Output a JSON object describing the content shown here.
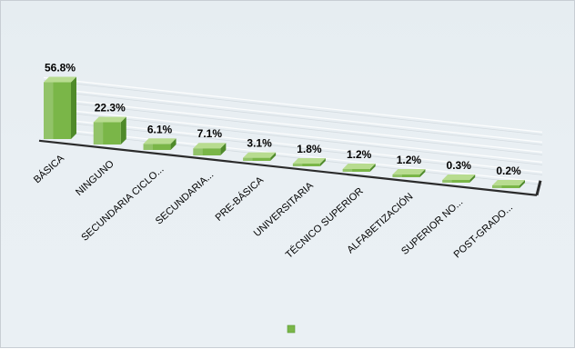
{
  "chart_data": {
    "type": "bar",
    "categories": [
      "BÁSICA",
      "NINGUNO",
      "SECUNDARIA CICLO...",
      "SECUNDARIA...",
      "PRE-BÁSICA",
      "UNIVERSITARIA",
      "TÉCNICO SUPERIOR",
      "ALFABETIZACIÓN",
      "SUPERIOR NO...",
      "POST-GRADO..."
    ],
    "values": [
      56.8,
      22.3,
      6.1,
      7.1,
      3.1,
      1.8,
      1.2,
      1.2,
      0.3,
      0.2
    ],
    "data_labels": [
      "56.8%",
      "22.3%",
      "6.1%",
      "7.1%",
      "3.1%",
      "1.8%",
      "1.2%",
      "1.2%",
      "0.3%",
      "0.2%"
    ],
    "title": "",
    "xlabel": "",
    "ylabel": "",
    "ylim": [
      0,
      60
    ],
    "grid": true,
    "perspective": "3d",
    "legend": "bottom-center",
    "colors": {
      "bar_front": "#7ab648",
      "bar_side": "#4f8a2a",
      "bar_top": "#b8dc90",
      "gridline": "#ffffff",
      "floor_edge": "#2b2b2b",
      "background": "#e8eef2"
    }
  }
}
